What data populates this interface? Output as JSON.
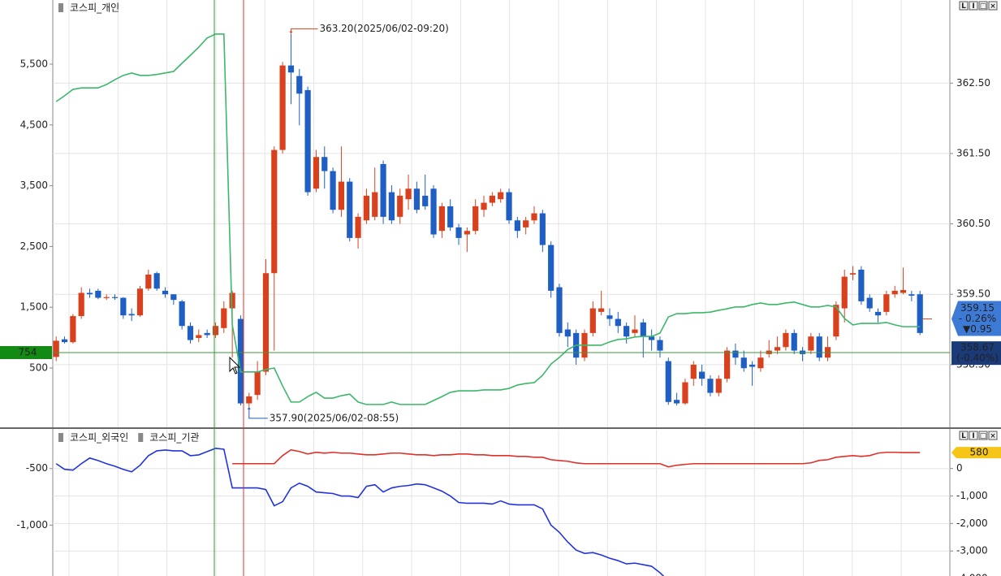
{
  "chart_data": [
    {
      "type": "candlestick",
      "toolbar": [
        "L",
        "I",
        "□",
        "×"
      ],
      "up_color": "#d9411e",
      "down_color": "#1f5fc4",
      "candles": {
        "open": [
          358.61,
          358.86,
          358.82,
          359.19,
          359.52,
          359.55,
          359.45,
          359.46,
          359.45,
          359.22,
          359.2,
          359.58,
          359.8,
          359.55,
          359.5,
          359.4,
          359.05,
          358.88,
          358.95,
          358.92,
          359.02,
          359.3,
          359.15,
          357.95,
          358.07,
          358.4,
          359.8,
          361.55,
          362.75,
          362.6,
          362.4,
          361.0,
          361.45,
          361.25,
          360.7,
          361.1,
          360.3,
          360.55,
          360.6,
          361.35,
          360.95,
          360.6,
          360.85,
          361.0,
          360.9,
          361.0,
          360.4,
          360.75,
          360.45,
          360.35,
          360.4,
          360.7,
          360.8,
          360.85,
          360.95,
          360.55,
          360.45,
          360.55,
          360.65,
          360.2,
          359.6,
          359.0,
          358.95,
          358.6,
          358.95,
          359.25,
          359.2,
          359.15,
          359.05,
          358.95,
          359.1,
          358.9,
          358.85,
          358.55,
          358.0,
          357.95,
          358.3,
          358.4,
          358.3,
          358.1,
          358.3,
          358.7,
          358.6,
          358.5,
          358.45,
          358.65,
          358.7,
          358.75,
          358.95,
          358.7,
          358.7,
          358.9,
          358.6,
          358.9,
          359.3,
          359.78,
          359.85,
          359.45,
          359.25,
          359.25,
          359.5,
          359.52,
          359.5,
          359.5
        ],
        "high": [
          358.9,
          358.9,
          359.22,
          359.6,
          359.58,
          359.58,
          359.5,
          359.5,
          359.46,
          359.3,
          359.62,
          359.85,
          359.82,
          359.6,
          359.5,
          359.42,
          359.1,
          359.0,
          359.0,
          359.1,
          359.4,
          359.55,
          359.2,
          358.1,
          358.55,
          360.0,
          361.6,
          362.8,
          363.2,
          362.7,
          362.45,
          361.55,
          361.6,
          361.3,
          361.6,
          361.15,
          360.65,
          361.0,
          361.3,
          361.4,
          361.05,
          361.0,
          361.2,
          361.1,
          361.2,
          361.05,
          360.8,
          360.85,
          360.5,
          360.45,
          360.85,
          360.9,
          360.95,
          361.0,
          361.0,
          360.6,
          360.6,
          360.75,
          360.7,
          360.25,
          359.65,
          359.1,
          359.0,
          359.0,
          359.4,
          359.55,
          359.3,
          359.25,
          359.1,
          359.2,
          359.15,
          359.0,
          358.9,
          358.6,
          358.1,
          358.3,
          358.55,
          358.5,
          358.35,
          358.35,
          358.75,
          358.8,
          358.7,
          358.55,
          358.7,
          358.85,
          358.9,
          359.0,
          359.0,
          358.75,
          358.95,
          358.95,
          358.9,
          359.4,
          359.85,
          359.9,
          359.9,
          359.5,
          359.3,
          359.55,
          359.62,
          359.88,
          359.55,
          359.55
        ],
        "low": [
          358.55,
          358.8,
          358.8,
          359.15,
          359.45,
          359.43,
          359.42,
          359.42,
          359.15,
          359.12,
          359.18,
          359.55,
          359.55,
          359.45,
          359.35,
          359.0,
          358.8,
          358.82,
          358.88,
          358.88,
          358.95,
          358.6,
          357.92,
          357.9,
          358.0,
          358.35,
          358.7,
          361.5,
          362.2,
          361.9,
          360.9,
          360.95,
          361.0,
          360.65,
          360.6,
          360.25,
          360.15,
          360.5,
          360.55,
          360.5,
          360.5,
          360.5,
          360.7,
          360.65,
          360.7,
          360.3,
          360.3,
          360.4,
          360.2,
          360.1,
          360.35,
          360.6,
          360.75,
          360.8,
          360.5,
          360.3,
          360.35,
          360.5,
          360.1,
          359.45,
          358.9,
          358.75,
          358.5,
          358.55,
          358.9,
          359.2,
          359.05,
          358.95,
          358.8,
          358.9,
          358.6,
          358.7,
          358.6,
          357.93,
          357.92,
          357.93,
          358.2,
          358.2,
          358.05,
          358.05,
          358.25,
          358.5,
          358.4,
          358.2,
          358.4,
          358.6,
          358.65,
          358.7,
          358.65,
          358.55,
          358.65,
          358.55,
          358.55,
          358.85,
          359.1,
          359.7,
          359.35,
          359.25,
          359.1,
          359.2,
          359.45,
          359.5,
          359.4,
          358.92
        ],
        "close": [
          358.84,
          358.82,
          359.19,
          359.52,
          359.5,
          359.45,
          359.46,
          359.45,
          359.2,
          359.2,
          359.58,
          359.78,
          359.58,
          359.5,
          359.42,
          359.05,
          358.85,
          358.92,
          358.92,
          359.05,
          359.3,
          359.52,
          357.95,
          358.05,
          358.4,
          359.8,
          361.55,
          362.75,
          362.65,
          362.35,
          360.95,
          361.45,
          361.25,
          360.7,
          361.1,
          360.3,
          360.6,
          360.9,
          360.95,
          360.6,
          360.55,
          360.9,
          361.0,
          360.7,
          360.75,
          360.35,
          360.75,
          360.45,
          360.3,
          360.4,
          360.75,
          360.8,
          360.9,
          360.95,
          360.55,
          360.4,
          360.55,
          360.65,
          360.2,
          359.55,
          358.95,
          358.9,
          358.6,
          358.95,
          359.3,
          359.3,
          359.15,
          359.05,
          358.9,
          359.0,
          358.9,
          358.85,
          358.7,
          357.97,
          357.95,
          358.25,
          358.5,
          358.3,
          358.1,
          358.3,
          358.7,
          358.6,
          358.45,
          358.47,
          358.6,
          358.7,
          358.75,
          358.95,
          358.7,
          358.65,
          358.9,
          358.6,
          358.75,
          359.35,
          359.75,
          359.8,
          359.4,
          359.3,
          359.2,
          359.5,
          359.55,
          359.56,
          359.48,
          358.95
        ]
      },
      "series": [
        {
          "name": "코스피_개인",
          "color": "#3cb86a",
          "axis": "y",
          "values": [
            4885,
            4980,
            5085,
            5110,
            5110,
            5110,
            5165,
            5245,
            5315,
            5355,
            5315,
            5315,
            5330,
            5355,
            5380,
            5515,
            5645,
            5780,
            5930,
            5995,
            5995,
            1210,
            435,
            435,
            435,
            475,
            500,
            205,
            -60,
            -60,
            30,
            100,
            5,
            5,
            45,
            70,
            -60,
            -100,
            -100,
            -100,
            -60,
            -100,
            -100,
            -100,
            -100,
            -35,
            30,
            100,
            125,
            125,
            125,
            140,
            140,
            140,
            165,
            220,
            245,
            260,
            380,
            565,
            675,
            805,
            875,
            875,
            875,
            875,
            930,
            970,
            980,
            1010,
            1020,
            1020,
            1075,
            1340,
            1395,
            1395,
            1410,
            1410,
            1420,
            1450,
            1475,
            1505,
            1505,
            1545,
            1570,
            1545,
            1545,
            1570,
            1585,
            1545,
            1505,
            1505,
            1530,
            1505,
            1315,
            1210,
            1235,
            1235,
            1235,
            1250,
            1210,
            1180,
            1180,
            1180
          ]
        }
      ],
      "ylim": [
        -476,
        6556
      ],
      "yticks": [
        500,
        {
          "value": 1500,
          "label": "1,500"
        },
        {
          "value": 2500,
          "label": "2,500"
        },
        {
          "value": 3500,
          "label": "3,500"
        },
        {
          "value": 4500,
          "label": "4,500"
        },
        {
          "value": 5500,
          "label": "5,500"
        }
      ],
      "y2lim": [
        357.61,
        363.68
      ],
      "y2ticks": [
        {
          "value": 358.5,
          "label": "358.50"
        },
        {
          "value": 359.5,
          "label": "359.50"
        },
        {
          "value": 360.5,
          "label": "360.50"
        },
        {
          "value": 361.5,
          "label": "361.50"
        },
        {
          "value": 362.5,
          "label": "362.50"
        }
      ],
      "grid": true,
      "max_label": "363.20(2025/06/02-09:20)",
      "min_label": "357.90(2025/06/02-08:55)",
      "cursor_value": 754,
      "current_price": {
        "value": 359.15,
        "change_pct": "- 0.26%",
        "change": "▼0.95"
      },
      "cursor_price": {
        "value": 358.67,
        "change_pct": "(-0.40%)"
      }
    },
    {
      "type": "line",
      "toolbar": [
        "L",
        "I",
        "□",
        "×"
      ],
      "series": [
        {
          "name": "코스피_외국인",
          "color": "#e0302a",
          "axis": "y2",
          "values": [
            null,
            null,
            null,
            null,
            null,
            null,
            null,
            null,
            null,
            null,
            null,
            null,
            null,
            null,
            null,
            null,
            null,
            null,
            null,
            null,
            null,
            176,
            176,
            176,
            176,
            176,
            176,
            470,
            680,
            620,
            530,
            590,
            560,
            590,
            560,
            560,
            530,
            500,
            500,
            530,
            560,
            560,
            530,
            500,
            500,
            470,
            500,
            500,
            530,
            530,
            500,
            500,
            470,
            470,
            470,
            440,
            440,
            410,
            410,
            320,
            290,
            265,
            205,
            176,
            176,
            176,
            176,
            176,
            176,
            176,
            176,
            176,
            176,
            60,
            120,
            150,
            176,
            176,
            176,
            176,
            176,
            176,
            176,
            176,
            176,
            176,
            176,
            176,
            176,
            176,
            205,
            295,
            320,
            410,
            440,
            470,
            440,
            470,
            560,
            590,
            590,
            580,
            580,
            580
          ]
        },
        {
          "name": "코스피_기관",
          "color": "#2233dd",
          "axis": "y",
          "values": [
            -457,
            -507,
            -514,
            -457,
            -407,
            -429,
            -457,
            -479,
            -507,
            -529,
            -471,
            -386,
            -343,
            -336,
            -343,
            -343,
            -386,
            -379,
            -350,
            -321,
            -329,
            -671,
            -671,
            -671,
            -671,
            -686,
            -829,
            -793,
            -671,
            -629,
            -657,
            -707,
            -714,
            -721,
            -743,
            -743,
            -757,
            -657,
            -643,
            -707,
            -671,
            -657,
            -650,
            -636,
            -643,
            -671,
            -700,
            -743,
            -800,
            -807,
            -807,
            -807,
            -814,
            -786,
            -814,
            -821,
            -821,
            -821,
            -857,
            -1000,
            -1064,
            -1150,
            -1221,
            -1250,
            -1243,
            -1264,
            -1293,
            -1314,
            -1343,
            -1336,
            -1350,
            -1364,
            -1421,
            -1493,
            null,
            null,
            null,
            null,
            null,
            null,
            null,
            null,
            null,
            null,
            null,
            null,
            null,
            null,
            null,
            null,
            null,
            null,
            null,
            null,
            null,
            null,
            null,
            null,
            null,
            null,
            null,
            null,
            null,
            null
          ]
        }
      ],
      "ylim": [
        -1450,
        -157
      ],
      "yticks": [
        -500,
        {
          "value": -1000,
          "label": "-1,000"
        }
      ],
      "y2lim": [
        -3910,
        1410
      ],
      "y2ticks": [
        0,
        {
          "value": -1000,
          "label": "-1,000"
        },
        {
          "value": -2000,
          "label": "-2,000"
        },
        {
          "value": -3000,
          "label": "-3,000"
        },
        {
          "value": -4000,
          "label": "-4,000"
        }
      ],
      "grid": true
    }
  ]
}
